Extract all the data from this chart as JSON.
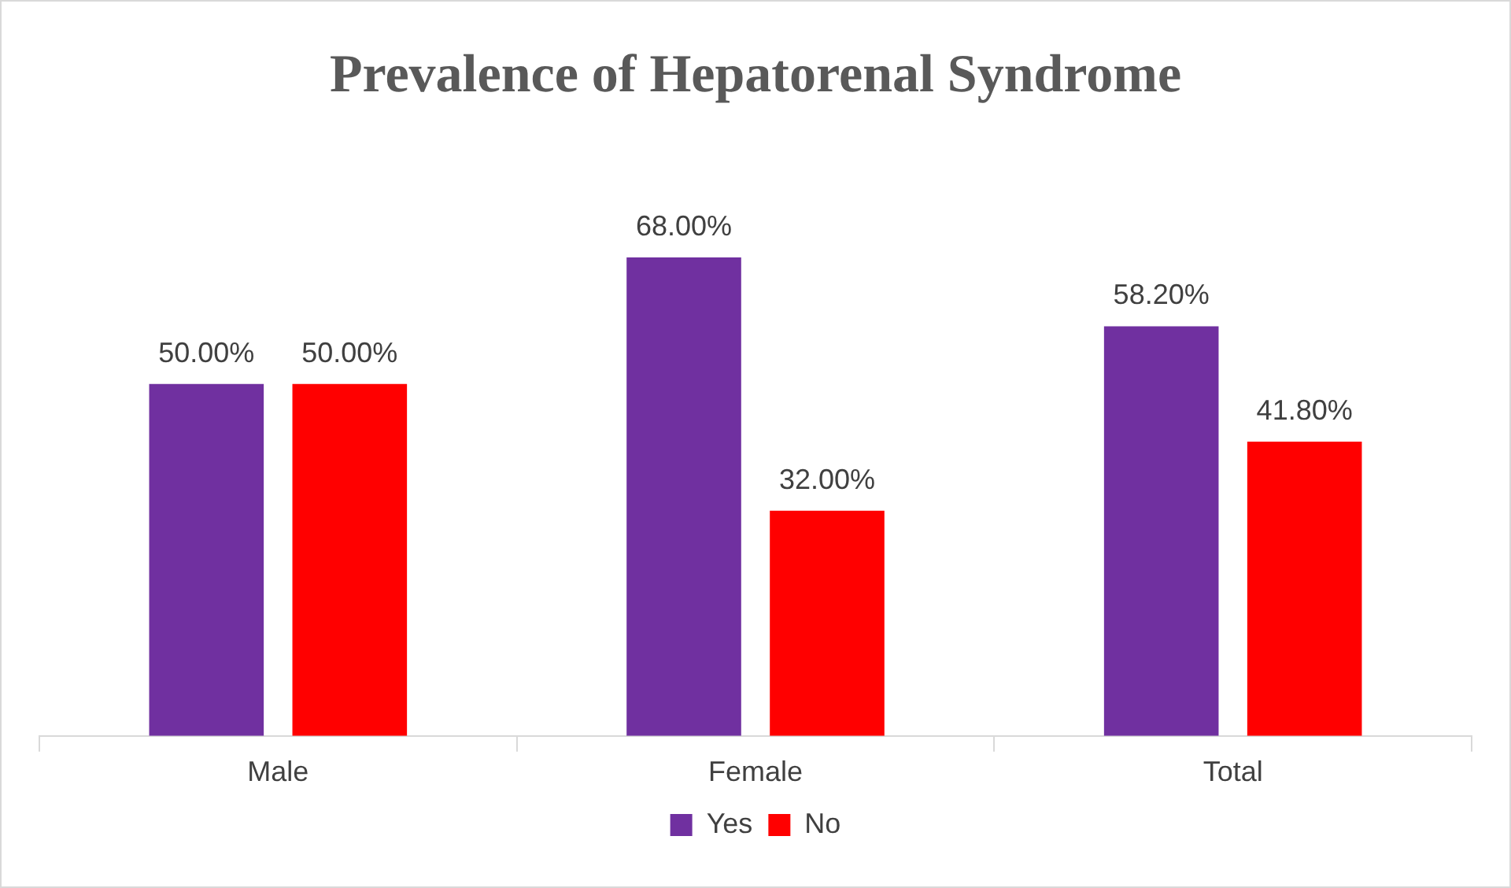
{
  "chart_data": {
    "type": "bar",
    "title": "Prevalence of Hepatorenal Syndrome",
    "categories": [
      "Male",
      "Female",
      "Total"
    ],
    "series": [
      {
        "name": "Yes",
        "color": "#7030a0",
        "values": [
          50,
          68,
          58.2
        ],
        "value_labels": [
          "50.00%",
          "68.00%",
          "58.20%"
        ]
      },
      {
        "name": "No",
        "color": "#ff0000",
        "values": [
          50,
          32,
          41.8
        ],
        "value_labels": [
          "50.00%",
          "32.00%",
          "41.80%"
        ]
      }
    ],
    "legend": "bottom"
  }
}
